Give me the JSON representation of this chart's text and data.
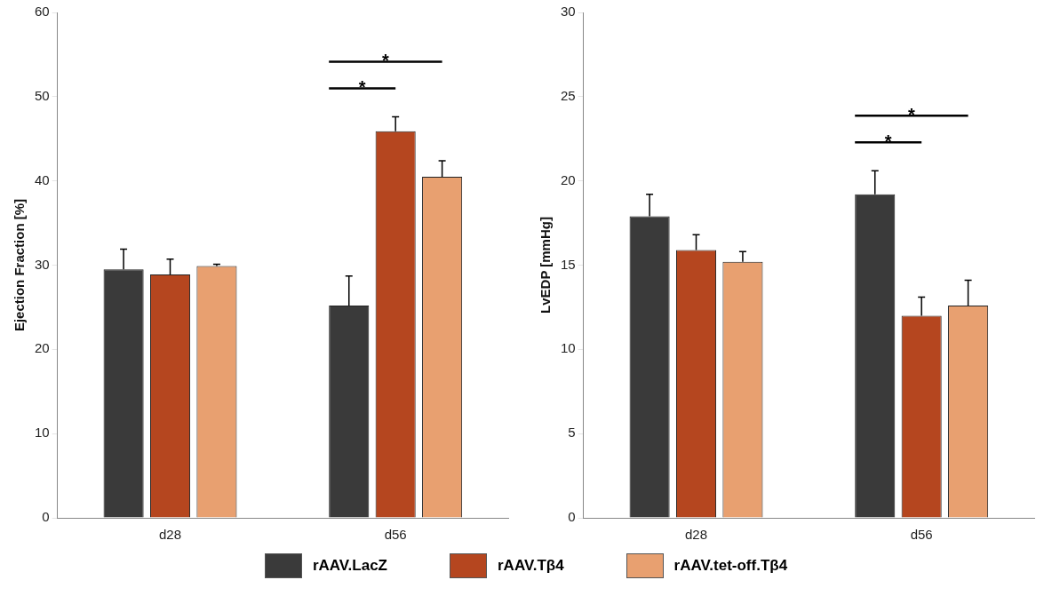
{
  "chart_data": [
    {
      "type": "bar",
      "ylabel": "Ejection Fraction [%]",
      "categories": [
        "d28",
        "d56"
      ],
      "ylim": [
        0,
        60
      ],
      "yticks": [
        0,
        10,
        20,
        30,
        40,
        50,
        60
      ],
      "grid": false,
      "legend": "bottom",
      "series": [
        {
          "name": "rAAV.LacZ",
          "color": "#3a3a3a",
          "values": [
            29.5,
            25.2
          ],
          "errors": [
            2.4,
            3.5
          ]
        },
        {
          "name": "rAAV.Tβ4",
          "color": "#b5461f",
          "values": [
            28.9,
            45.9
          ],
          "errors": [
            1.8,
            1.7
          ]
        },
        {
          "name": "rAAV.tet-off.Tβ4",
          "color": "#e8a070",
          "values": [
            29.9,
            40.5
          ],
          "errors": [
            0.2,
            1.9
          ]
        }
      ],
      "annotations": [
        "*",
        "*"
      ]
    },
    {
      "type": "bar",
      "ylabel": "LvEDP [mmHg]",
      "categories": [
        "d28",
        "d56"
      ],
      "ylim": [
        0,
        30
      ],
      "yticks": [
        0,
        5,
        10,
        15,
        20,
        25,
        30
      ],
      "grid": false,
      "series": [
        {
          "color": "#3a3a3a",
          "values": [
            17.9,
            19.2
          ],
          "errors": [
            1.3,
            1.4
          ]
        },
        {
          "color": "#b5461f",
          "values": [
            15.9,
            12.0
          ],
          "errors": [
            0.9,
            1.1
          ]
        },
        {
          "color": "#e8a070",
          "values": [
            15.2,
            12.6
          ],
          "errors": [
            0.6,
            1.5
          ]
        }
      ],
      "annotations": [
        "*",
        "*"
      ]
    }
  ]
}
